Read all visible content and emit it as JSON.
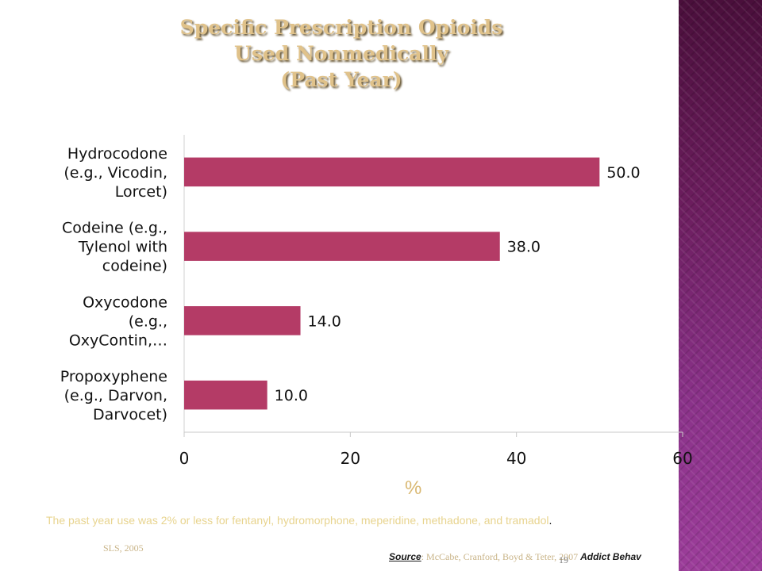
{
  "slide": {
    "title_lines": [
      "Specific Prescription Opioids",
      "Used Nonmedically",
      "(Past Year)"
    ],
    "percent_axis_label": "%",
    "note_text": "The past year use was 2% or less for fentanyl, hydromorphone, meperidine, methadone, and tramadol",
    "note_end": ".",
    "footer_left": "SLS, 2005",
    "source_key": "Source",
    "source_text": ": McCabe, Cranford, Boyd & Teter, 2007 ",
    "source_journal": "Addict Behav",
    "page_number": "19",
    "colors": {
      "bar": "#b43b66",
      "title": "#e0c28a",
      "note": "#e8d48f",
      "band": "#6b1d5d"
    }
  },
  "chart_data": {
    "type": "bar",
    "orientation": "horizontal",
    "categories": [
      [
        "Hydrocodone",
        "(e.g., Vicodin,",
        "Lorcet)"
      ],
      [
        "Codeine (e.g.,",
        "Tylenol with",
        "codeine)"
      ],
      [
        "Oxycodone",
        "(e.g.,",
        "OxyContin,…"
      ],
      [
        "Propoxyphene",
        "(e.g., Darvon,",
        "Darvocet)"
      ]
    ],
    "values": [
      50.0,
      38.0,
      14.0,
      10.0
    ],
    "value_labels": [
      "50.0",
      "38.0",
      "14.0",
      "10.0"
    ],
    "xlim": [
      0,
      60
    ],
    "xticks": [
      "0",
      "20",
      "40",
      "60"
    ],
    "xlabel": "%",
    "grid": false
  }
}
